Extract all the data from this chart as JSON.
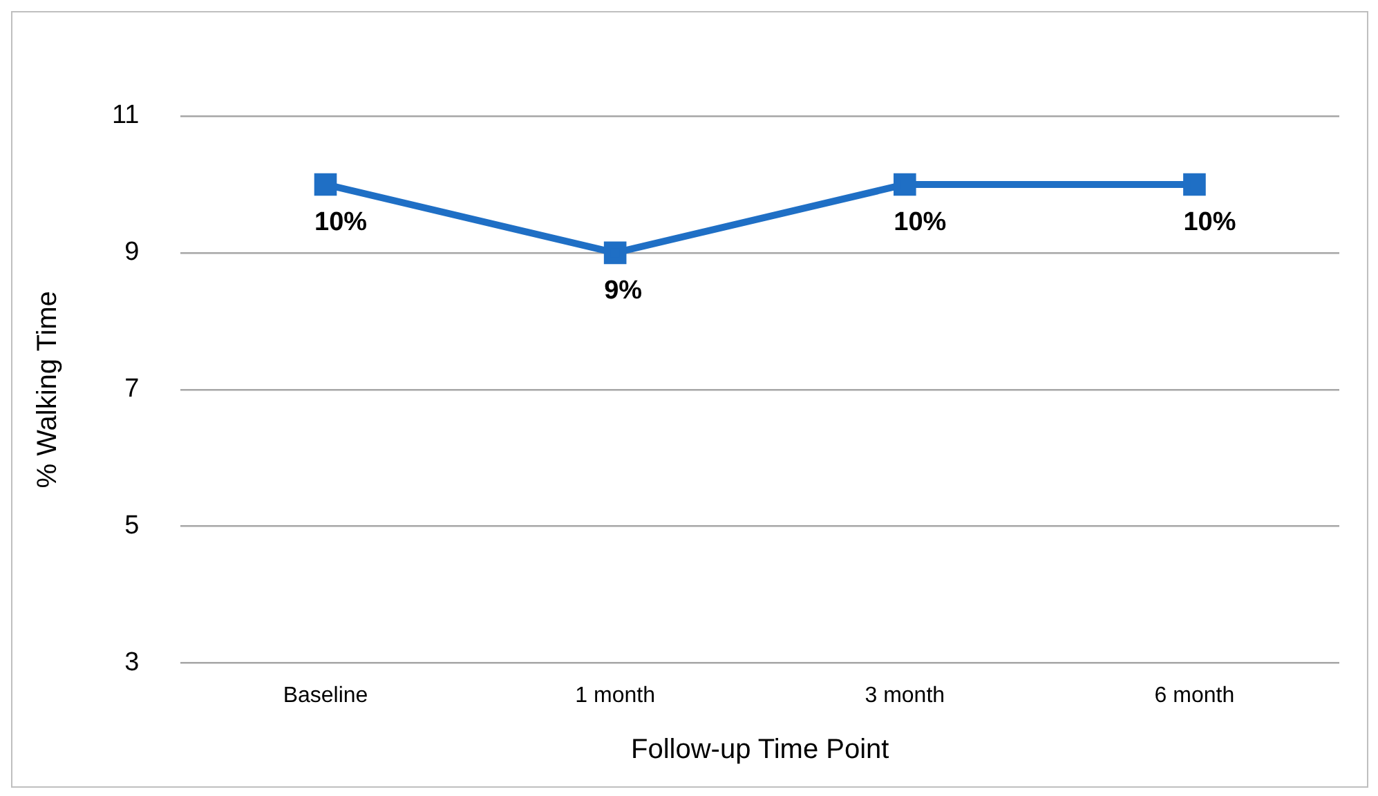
{
  "chart_data": {
    "type": "line",
    "xlabel": "Follow-up Time Point",
    "ylabel": "% Walking Time",
    "categories": [
      "Baseline",
      "1 month",
      "3 month",
      "6 month"
    ],
    "series": [
      {
        "color": "#1f6fc5",
        "values": [
          10,
          9,
          10,
          10
        ],
        "value_labels": [
          "10%",
          "9%",
          "10%",
          "10%"
        ]
      }
    ],
    "ylim": [
      3,
      11
    ],
    "yticks": [
      3,
      5,
      7,
      9,
      11
    ],
    "grid": "y",
    "legend": false,
    "marker": "square",
    "line_style": "solid"
  }
}
